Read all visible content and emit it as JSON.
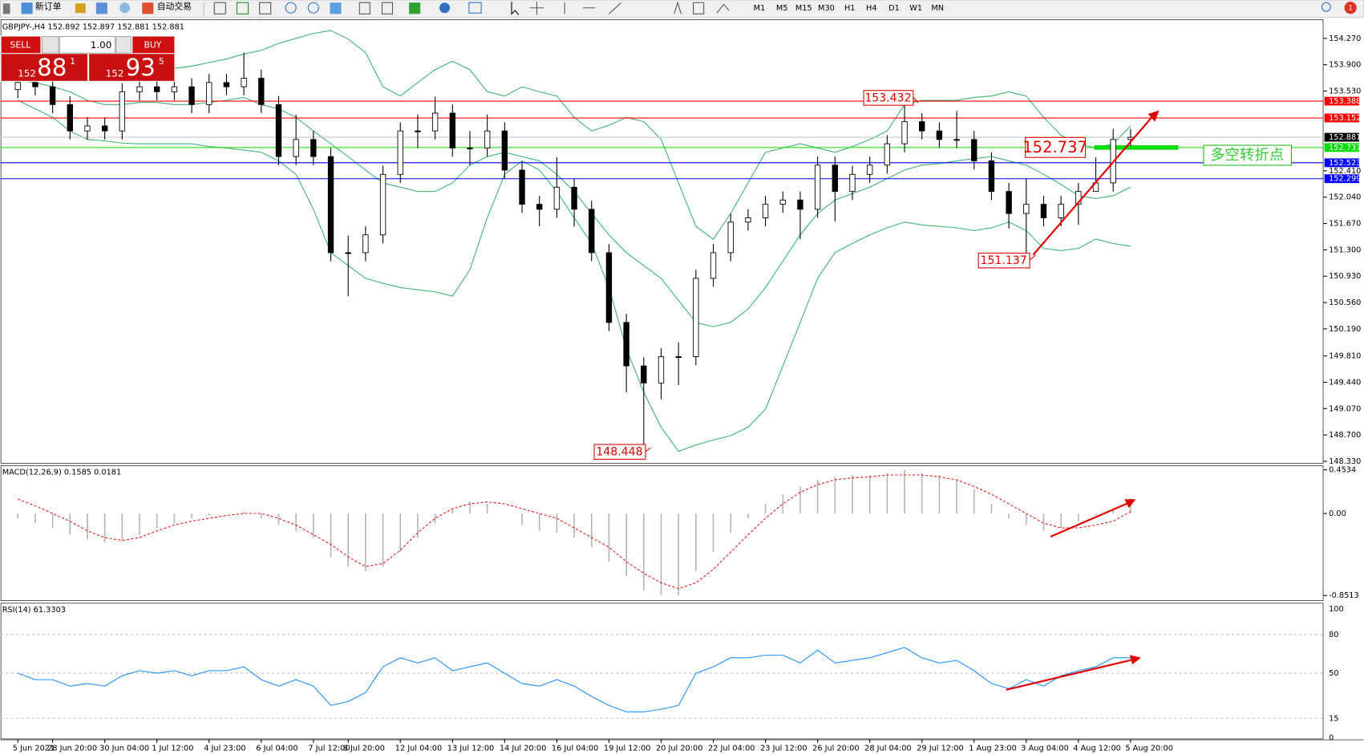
{
  "toolbar": {
    "new_order": "新订单",
    "auto_trading": "自动交易",
    "timeframes": [
      "M1",
      "M5",
      "M15",
      "M30",
      "H1",
      "H4",
      "D1",
      "W1",
      "MN"
    ],
    "alert_count": 1
  },
  "trade_panel": {
    "sell": "SELL",
    "buy": "BUY",
    "lots": "1.00",
    "sell_price": [
      "152",
      "88",
      "1"
    ],
    "buy_price": [
      "152",
      "93",
      "5"
    ]
  },
  "chart_data": {
    "type": "candlestick",
    "symbol_info": "GBPJPY-,H4  152.892 152.897 152.881 152.881",
    "categories": [
      "5 Jun 2021",
      null,
      "28 Jun 20:00",
      null,
      null,
      "30 Jun 04:00",
      null,
      null,
      "1 Jul 12:00",
      null,
      null,
      "4 Jul 23:00",
      null,
      null,
      "6 Jul 04:00",
      null,
      null,
      "7 Jul 12:00",
      null,
      "8 Jul 20:00",
      null,
      null,
      "12 Jul 04:00",
      null,
      null,
      "13 Jul 12:00",
      null,
      null,
      "14 Jul 20:00",
      null,
      null,
      "16 Jul 04:00",
      null,
      null,
      "19 Jul 12:00",
      null,
      null,
      "20 Jul 20:00",
      null,
      null,
      "22 Jul 04:00",
      null,
      null,
      "23 Jul 12:00",
      null,
      null,
      "26 Jul 20:00",
      null,
      null,
      "28 Jul 04:00",
      null,
      null,
      "29 Jul 12:00",
      null,
      null,
      "1 Aug 23:00",
      null,
      null,
      "3 Aug 04:00",
      null,
      null,
      "4 Aug 12:00",
      null,
      null,
      "5 Aug 20:00"
    ],
    "open": [
      153.55,
      153.65,
      153.59,
      153.34,
      152.97,
      153.04,
      152.97,
      153.52,
      153.59,
      153.52,
      153.59,
      153.34,
      153.65,
      153.59,
      153.71,
      153.34,
      152.61,
      152.85,
      152.61,
      151.26,
      151.26,
      151.51,
      152.36,
      152.97,
      152.97,
      153.22,
      152.73,
      152.73,
      152.97,
      152.42,
      151.94,
      151.87,
      152.18,
      151.87,
      151.26,
      150.28,
      149.67,
      149.43,
      149.8,
      149.8,
      150.9,
      151.26,
      151.69,
      151.75,
      151.94,
      152.0,
      151.87,
      152.49,
      152.12,
      152.36,
      152.49,
      152.79,
      153.1,
      152.97,
      152.85,
      152.85,
      152.55,
      152.12,
      151.81,
      151.94,
      151.75,
      151.94,
      152.12,
      152.24,
      152.85
    ],
    "high": [
      153.77,
      153.77,
      153.71,
      153.46,
      153.16,
      153.16,
      153.64,
      153.71,
      153.71,
      153.71,
      153.71,
      153.77,
      153.77,
      154.07,
      153.83,
      153.46,
      153.2,
      152.97,
      152.73,
      151.5,
      151.63,
      152.48,
      153.09,
      153.2,
      153.45,
      153.34,
      152.97,
      153.2,
      153.09,
      152.54,
      152.06,
      152.6,
      152.3,
      151.99,
      151.38,
      150.4,
      149.79,
      149.92,
      150.0,
      151.02,
      151.38,
      151.81,
      151.87,
      152.06,
      152.12,
      152.12,
      152.61,
      152.61,
      152.48,
      152.61,
      152.91,
      153.43,
      153.22,
      153.09,
      153.25,
      152.97,
      152.67,
      152.24,
      152.3,
      152.06,
      152.06,
      152.24,
      152.6,
      153.0,
      153.0
    ],
    "low": [
      153.43,
      153.47,
      153.22,
      152.85,
      152.85,
      152.85,
      152.85,
      153.4,
      153.4,
      153.4,
      153.22,
      153.22,
      153.47,
      153.47,
      153.22,
      152.49,
      152.49,
      152.49,
      151.14,
      150.65,
      151.14,
      151.39,
      152.24,
      152.73,
      152.85,
      152.61,
      152.49,
      152.61,
      152.3,
      151.82,
      151.63,
      151.75,
      151.63,
      151.14,
      150.16,
      149.3,
      148.45,
      149.2,
      149.4,
      149.68,
      150.78,
      151.14,
      151.57,
      151.63,
      151.82,
      151.45,
      151.75,
      151.7,
      152.0,
      152.24,
      152.37,
      152.67,
      152.85,
      152.73,
      152.73,
      152.43,
      152.0,
      151.6,
      151.14,
      151.63,
      151.63,
      151.65,
      152.12,
      152.12,
      152.76
    ],
    "close": [
      153.65,
      153.59,
      153.34,
      152.97,
      153.04,
      152.97,
      153.52,
      153.59,
      153.52,
      153.59,
      153.34,
      153.65,
      153.59,
      153.71,
      153.34,
      152.61,
      152.85,
      152.61,
      151.26,
      151.26,
      151.51,
      152.36,
      152.97,
      152.97,
      153.22,
      152.73,
      152.73,
      152.97,
      152.42,
      151.94,
      151.87,
      152.18,
      151.87,
      151.26,
      150.28,
      149.67,
      149.43,
      149.8,
      149.8,
      150.9,
      151.26,
      151.69,
      151.75,
      151.94,
      152.0,
      151.87,
      152.49,
      152.12,
      152.36,
      152.49,
      152.79,
      153.1,
      152.97,
      152.85,
      152.85,
      152.55,
      152.12,
      151.81,
      151.94,
      151.75,
      151.94,
      152.12,
      152.24,
      152.85,
      152.88
    ],
    "bands": [
      {
        "color": "#3cb371",
        "values": [
          154.07,
          154.05,
          154.02,
          154.0,
          153.98,
          153.95,
          153.93,
          153.9,
          153.88,
          153.85,
          153.88,
          153.93,
          153.98,
          154.05,
          154.1,
          154.2,
          154.27,
          154.34,
          154.38,
          154.26,
          154.07,
          153.59,
          153.46,
          153.65,
          153.83,
          153.95,
          153.83,
          153.52,
          153.46,
          153.59,
          153.52,
          153.46,
          153.16,
          152.97,
          153.05,
          153.16,
          153.1,
          152.85,
          152.24,
          151.63,
          151.45,
          151.81,
          152.24,
          152.67,
          152.73,
          152.79,
          152.73,
          152.67,
          152.75,
          152.85,
          152.97,
          153.34,
          153.4,
          153.4,
          153.4,
          153.44,
          153.46,
          153.52,
          153.46,
          153.16,
          152.91,
          152.79,
          152.73,
          152.79,
          153.04
        ]
      },
      {
        "color": "#3cb371",
        "values": [
          153.68,
          153.65,
          153.59,
          153.52,
          153.4,
          153.34,
          153.34,
          153.37,
          153.37,
          153.34,
          153.34,
          153.37,
          153.4,
          153.44,
          153.34,
          153.28,
          153.16,
          152.97,
          152.79,
          152.61,
          152.42,
          152.24,
          152.18,
          152.12,
          152.12,
          152.24,
          152.49,
          152.61,
          152.67,
          152.61,
          152.55,
          152.36,
          152.12,
          151.81,
          151.51,
          151.26,
          151.08,
          150.9,
          150.59,
          150.28,
          150.22,
          150.28,
          150.47,
          150.77,
          151.14,
          151.51,
          151.81,
          152.0,
          152.09,
          152.18,
          152.3,
          152.42,
          152.49,
          152.51,
          152.55,
          152.58,
          152.61,
          152.55,
          152.49,
          152.36,
          152.22,
          152.06,
          152.02,
          152.06,
          152.18
        ]
      },
      {
        "color": "#3cb371",
        "values": [
          153.4,
          153.28,
          153.16,
          152.97,
          152.85,
          152.83,
          152.8,
          152.79,
          152.79,
          152.79,
          152.79,
          152.75,
          152.73,
          152.7,
          152.67,
          152.55,
          152.36,
          151.87,
          151.26,
          151.08,
          150.9,
          150.83,
          150.77,
          150.74,
          150.71,
          150.65,
          151.02,
          151.75,
          152.36,
          152.55,
          152.42,
          152.12,
          151.75,
          151.39,
          150.77,
          149.91,
          149.3,
          148.81,
          148.47,
          148.56,
          148.63,
          148.69,
          148.81,
          149.06,
          149.67,
          150.28,
          150.9,
          151.26,
          151.39,
          151.51,
          151.61,
          151.69,
          151.65,
          151.63,
          151.61,
          151.57,
          151.61,
          151.69,
          151.57,
          151.32,
          151.29,
          151.32,
          151.45,
          151.39,
          151.35
        ]
      }
    ],
    "ylim": [
      148.31,
      154.54
    ],
    "yticks": [
      {
        "value": 154.27,
        "label": "154.270"
      },
      {
        "value": 153.9,
        "label": "153.900"
      },
      {
        "value": 153.53,
        "label": "153.530"
      },
      {
        "value": 152.41,
        "label": "152.410"
      },
      {
        "value": 152.04,
        "label": "152.040"
      },
      {
        "value": 151.67,
        "label": "151.670"
      },
      {
        "value": 151.3,
        "label": "151.300"
      },
      {
        "value": 150.93,
        "label": "150.930"
      },
      {
        "value": 150.56,
        "label": "150.560"
      },
      {
        "value": 150.19,
        "label": "150.190"
      },
      {
        "value": 149.81,
        "label": "149.810"
      },
      {
        "value": 149.44,
        "label": "149.440"
      },
      {
        "value": 149.07,
        "label": "149.070"
      },
      {
        "value": 148.7,
        "label": "148.700"
      },
      {
        "value": 148.33,
        "label": "148.330"
      }
    ],
    "levels": [
      {
        "value": 153.388,
        "color": "#ff0000"
      },
      {
        "value": 153.152,
        "color": "#ff0000"
      },
      {
        "value": 152.881,
        "color": "#c8c8c8"
      },
      {
        "value": 152.737,
        "color": "#00dd00"
      },
      {
        "value": 152.523,
        "color": "#0000ff"
      },
      {
        "value": 152.299,
        "color": "#0000ff"
      }
    ],
    "annotations": [
      "153.432",
      "152.737",
      "151.137",
      "148.448",
      "多空转折点"
    ],
    "macd": {
      "label": "MACD(12,26,9) 0.1585 0.0181",
      "ylim": [
        -0.9,
        0.5
      ],
      "yticks": [
        0.4534,
        {
          "value": 0,
          "label": "0.00"
        },
        -0.8513
      ],
      "histogram_color": "#b4b4b4",
      "signal_color": "#e02020",
      "histogram": [
        -0.05,
        -0.1,
        -0.15,
        -0.22,
        -0.27,
        -0.3,
        -0.28,
        -0.22,
        -0.15,
        -0.1,
        -0.05,
        -0.02,
        0.0,
        0.02,
        -0.05,
        -0.12,
        -0.18,
        -0.25,
        -0.45,
        -0.55,
        -0.6,
        -0.55,
        -0.4,
        -0.25,
        -0.1,
        0.05,
        0.12,
        0.1,
        0.0,
        -0.12,
        -0.18,
        -0.2,
        -0.25,
        -0.35,
        -0.5,
        -0.65,
        -0.8,
        -0.85,
        -0.85,
        -0.6,
        -0.4,
        -0.2,
        -0.05,
        0.1,
        0.2,
        0.28,
        0.35,
        0.38,
        0.4,
        0.4,
        0.42,
        0.45,
        0.42,
        0.4,
        0.35,
        0.25,
        0.1,
        -0.05,
        -0.12,
        -0.18,
        -0.15,
        -0.08,
        -0.02,
        0.05,
        0.16
      ],
      "signal": [
        0.15,
        0.08,
        0.0,
        -0.08,
        -0.18,
        -0.25,
        -0.28,
        -0.25,
        -0.18,
        -0.12,
        -0.08,
        -0.05,
        -0.02,
        0.0,
        0.0,
        -0.05,
        -0.12,
        -0.22,
        -0.32,
        -0.45,
        -0.55,
        -0.52,
        -0.38,
        -0.2,
        -0.05,
        0.05,
        0.1,
        0.12,
        0.1,
        0.05,
        0.0,
        -0.05,
        -0.15,
        -0.25,
        -0.35,
        -0.5,
        -0.62,
        -0.72,
        -0.78,
        -0.72,
        -0.58,
        -0.4,
        -0.22,
        -0.05,
        0.1,
        0.22,
        0.3,
        0.35,
        0.37,
        0.38,
        0.4,
        0.4,
        0.4,
        0.38,
        0.35,
        0.28,
        0.2,
        0.1,
        0.0,
        -0.1,
        -0.15,
        -0.15,
        -0.12,
        -0.08,
        0.02
      ]
    },
    "rsi": {
      "label": "RSI(14) 61.3303",
      "ylim": [
        0,
        100
      ],
      "yticks": [
        100,
        80,
        50,
        15,
        0
      ],
      "color": "#1e90ff",
      "values": [
        50,
        45,
        45,
        40,
        42,
        40,
        48,
        52,
        50,
        52,
        48,
        52,
        52,
        55,
        45,
        40,
        45,
        40,
        25,
        28,
        35,
        55,
        62,
        58,
        62,
        52,
        55,
        58,
        50,
        42,
        40,
        45,
        40,
        32,
        25,
        20,
        20,
        22,
        25,
        50,
        55,
        62,
        62,
        64,
        64,
        58,
        68,
        58,
        60,
        62,
        66,
        70,
        62,
        58,
        60,
        52,
        42,
        38,
        45,
        40,
        48,
        52,
        55,
        62,
        62
      ]
    }
  }
}
